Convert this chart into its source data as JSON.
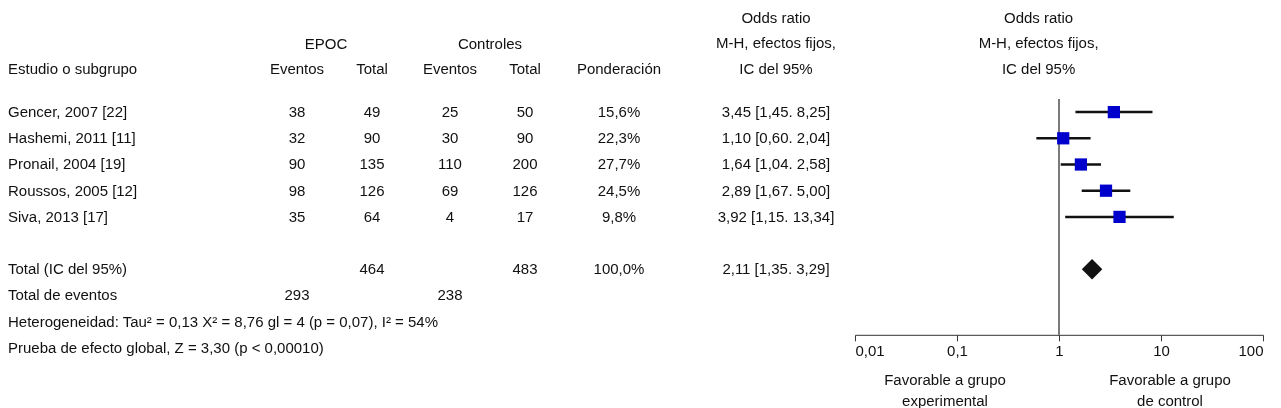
{
  "chart_data": [
    {
      "type": "other",
      "categories": [
        "Estudio o subgrupo",
        "Eventos",
        "Total",
        "Eventos",
        "Total",
        "Ponderación",
        "Odds ratio\nM-H, efectos fijos,\nIC del 95%"
      ],
      "y_categories": [
        "Gencer, 2007 [22]",
        "Hashemi, 2011 [11]",
        "Pronail, 2004 [19]",
        "Roussos, 2005 [12]",
        "Siva, 2013 [17]",
        null,
        "Total (IC del 95%)",
        "Total de eventos"
      ],
      "cell_labels": [
        [
          "38",
          "49",
          "25",
          "50",
          "15,6%",
          "3,45 [1,45. 8,25]"
        ],
        [
          "32",
          "90",
          "30",
          "90",
          "22,3%",
          "1,10 [0,60. 2,04]"
        ],
        [
          "90",
          "135",
          "110",
          "200",
          "27,7%",
          "1,64 [1,04. 2,58]"
        ],
        [
          "98",
          "126",
          "69",
          "126",
          "24,5%",
          "2,89 [1,67. 5,00]"
        ],
        [
          "35",
          "64",
          "4",
          "17",
          "9,8%",
          "3,92 [1,15. 13,34]"
        ],
        [
          null,
          null,
          null,
          null,
          null,
          null
        ],
        [
          null,
          "464",
          null,
          "483",
          "100,0%",
          "2,11 [1,35. 3,29]"
        ],
        [
          "293",
          null,
          "238",
          null,
          null,
          null
        ]
      ],
      "annotations": [
        "EPOC",
        "Controles",
        "Heterogeneidad: Tau² = 0,13 X² = 8,76 gl = 4 (p = 0,07), I² = 54%",
        "Prueba de efecto global, Z = 3,30 (p < 0,00010)"
      ]
    },
    {
      "type": "scatter",
      "orientation": "horizontal",
      "title": "Odds ratio\nM-H, efectos fijos,\nIC del 95%",
      "categories": [
        null,
        null,
        null,
        null,
        null,
        null,
        null,
        null,
        null
      ],
      "series": [
        {
          "color": "#0000cc",
          "marker": "square",
          "values": [
            3.45,
            1.1,
            1.64,
            2.89,
            3.92,
            null,
            null,
            null,
            null
          ],
          "errors": [
            [
              1.45,
              8.25
            ],
            [
              0.6,
              2.04
            ],
            [
              1.04,
              2.58
            ],
            [
              1.67,
              5.0
            ],
            [
              1.15,
              13.34
            ],
            null,
            null,
            null,
            null
          ]
        },
        {
          "color": "#111111",
          "marker": "diamond",
          "values": [
            null,
            null,
            null,
            null,
            null,
            null,
            2.11,
            null,
            null
          ]
        }
      ],
      "log": "x",
      "xlim": [
        0.01,
        100
      ],
      "xticks": [
        {
          "value": 0.01,
          "label": "0,01"
        },
        {
          "value": 0.1,
          "label": "0,1"
        },
        1,
        10,
        100
      ],
      "ref_lines": [
        {
          "axis": "x",
          "value": 1,
          "color": "#333333"
        }
      ],
      "tick_labels": "x",
      "annotations": [
        "Favorable a grupo\nexperimental",
        "Favorable a grupo\nde control"
      ]
    }
  ]
}
